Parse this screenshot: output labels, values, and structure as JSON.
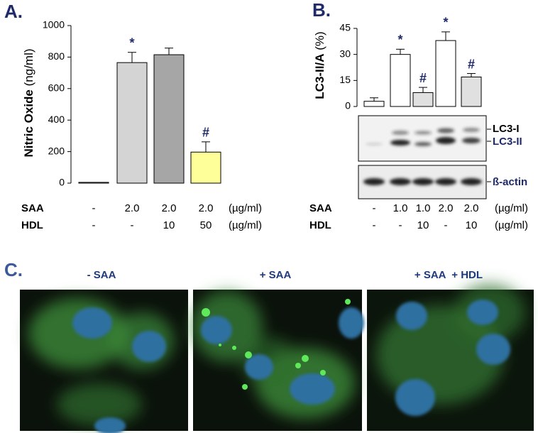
{
  "panels": {
    "a": "A.",
    "b": "B.",
    "c": "C."
  },
  "chart_data": [
    {
      "type": "bar",
      "ylabel": "Nitric Oxide",
      "ylabel_unit": "(ng/ml)",
      "categories": [
        null,
        null,
        null,
        null
      ],
      "values": [
        5,
        765,
        815,
        197
      ],
      "errors": [
        0,
        65,
        42,
        65
      ],
      "colors": [
        "#ffffff",
        "#d4d4d4",
        "#a6a6a6",
        "#ffff99"
      ],
      "value_marks": [
        null,
        "*",
        null,
        "#"
      ],
      "ylim": [
        0,
        1000
      ],
      "yticks": [
        0,
        200,
        400,
        600,
        800,
        1000
      ],
      "treatments": [
        {
          "name": "SAA",
          "values": [
            "-",
            "2.0",
            "2.0",
            "2.0"
          ],
          "unit": "(µg/ml)"
        },
        {
          "name": "HDL",
          "values": [
            "-",
            "-",
            "10",
            "50"
          ],
          "unit": "(µg/ml)"
        }
      ]
    },
    {
      "type": "bar",
      "ylabel": "LC3-II/A",
      "ylabel_unit": "(%)",
      "categories": [
        null,
        null,
        null,
        null,
        null
      ],
      "values": [
        3,
        30,
        8,
        38,
        17
      ],
      "errors": [
        2,
        3,
        3,
        5,
        2
      ],
      "colors": [
        "#ffffff",
        "#ffffff",
        "#e0e0e0",
        "#ffffff",
        "#e0e0e0"
      ],
      "value_marks": [
        null,
        "*",
        "#",
        "*",
        "#"
      ],
      "ylim": [
        0,
        45
      ],
      "yticks": [
        0,
        15,
        30,
        45
      ],
      "treatments": [
        {
          "name": "SAA",
          "values": [
            "-",
            "1.0",
            "1.0",
            "2.0",
            "2.0"
          ],
          "unit": "(µg/ml)"
        },
        {
          "name": "HDL",
          "values": [
            "-",
            "-",
            "10",
            "-",
            "10"
          ],
          "unit": "(µg/ml)"
        }
      ]
    }
  ],
  "blot": {
    "lc3_i": "LC3-I",
    "lc3_ii": "LC3-II",
    "actin": "ß-actin"
  },
  "images": {
    "labels": [
      "- SAA",
      "+ SAA",
      "+ SAA  + HDL"
    ]
  }
}
